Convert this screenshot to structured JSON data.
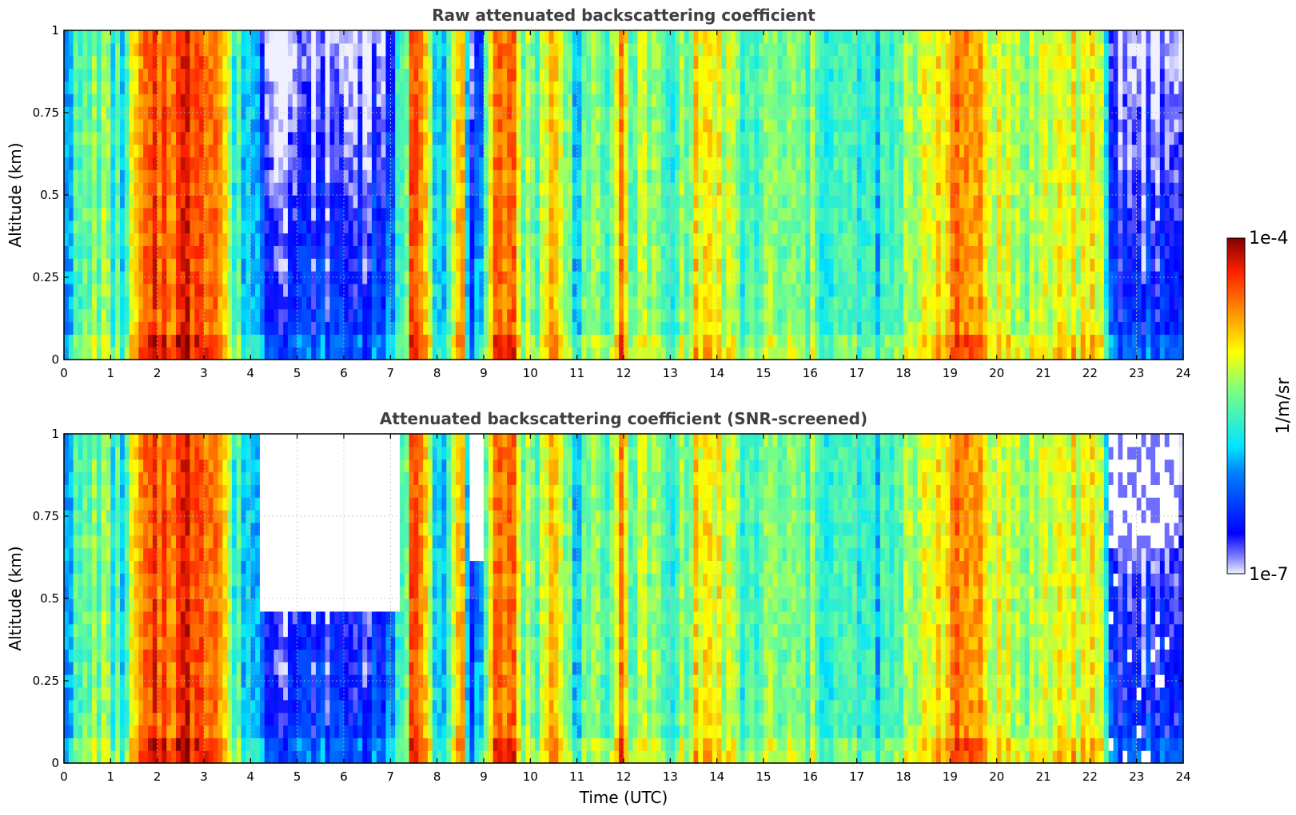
{
  "chart_data": [
    {
      "type": "heatmap",
      "title": "Raw attenuated backscattering coefficient",
      "xlabel": "",
      "ylabel": "Altitude (km)",
      "xlim": [
        0,
        24
      ],
      "ylim": [
        0,
        1
      ],
      "x_ticks": [
        "0",
        "1",
        "2",
        "3",
        "4",
        "5",
        "6",
        "7",
        "8",
        "9",
        "10",
        "11",
        "12",
        "13",
        "14",
        "15",
        "16",
        "17",
        "18",
        "19",
        "20",
        "21",
        "22",
        "23",
        "24"
      ],
      "y_ticks": [
        "0",
        "0.25",
        "0.5",
        "0.75",
        "1"
      ],
      "grid": true,
      "colorscale": "jet",
      "colorbar": {
        "label": "1/m/sr",
        "min_label": "1e-7",
        "max_label": "1e-4",
        "scale": "log"
      },
      "time_profile_log10": [
        [
          0,
          -5.9
        ],
        [
          0.5,
          -5.5
        ],
        [
          0.8,
          -5.3
        ],
        [
          1.0,
          -5.6
        ],
        [
          1.3,
          -5.7
        ],
        [
          1.6,
          -4.8
        ],
        [
          2.0,
          -4.5
        ],
        [
          2.5,
          -4.4
        ],
        [
          3.0,
          -4.3
        ],
        [
          3.4,
          -4.7
        ],
        [
          3.6,
          -5.6
        ],
        [
          3.9,
          -5.8
        ],
        [
          4.1,
          -5.9
        ],
        [
          4.5,
          -6.4
        ],
        [
          6.5,
          -6.4
        ],
        [
          7.0,
          -6.2
        ],
        [
          7.3,
          -5.5
        ],
        [
          7.5,
          -4.3
        ],
        [
          7.8,
          -4.7
        ],
        [
          8.0,
          -5.9
        ],
        [
          8.3,
          -5.5
        ],
        [
          8.5,
          -4.6
        ],
        [
          8.7,
          -6.2
        ],
        [
          9.0,
          -6.0
        ],
        [
          9.3,
          -4.5
        ],
        [
          9.6,
          -4.3
        ],
        [
          9.8,
          -5.3
        ],
        [
          10.1,
          -5.5
        ],
        [
          10.4,
          -4.8
        ],
        [
          10.7,
          -5.2
        ],
        [
          11.0,
          -5.8
        ],
        [
          11.3,
          -5.2
        ],
        [
          11.6,
          -5.9
        ],
        [
          11.9,
          -4.7
        ],
        [
          12.2,
          -5.4
        ],
        [
          12.6,
          -5.3
        ],
        [
          13.0,
          -5.8
        ],
        [
          13.3,
          -5.3
        ],
        [
          13.7,
          -4.9
        ],
        [
          14.2,
          -5.2
        ],
        [
          14.6,
          -5.7
        ],
        [
          15.0,
          -5.4
        ],
        [
          16.0,
          -5.5
        ],
        [
          16.5,
          -5.6
        ],
        [
          17.0,
          -5.7
        ],
        [
          17.5,
          -5.8
        ],
        [
          18.0,
          -5.5
        ],
        [
          18.5,
          -5.0
        ],
        [
          19.0,
          -4.8
        ],
        [
          19.5,
          -4.6
        ],
        [
          20.0,
          -5.1
        ],
        [
          20.5,
          -5.3
        ],
        [
          21.0,
          -5.2
        ],
        [
          21.5,
          -5.0
        ],
        [
          22.0,
          -5.1
        ],
        [
          22.3,
          -5.4
        ],
        [
          22.5,
          -6.4
        ],
        [
          24.0,
          -6.4
        ]
      ]
    },
    {
      "type": "heatmap",
      "title": "Attenuated backscattering coefficient (SNR-screened)",
      "xlabel": "Time (UTC)",
      "ylabel": "Altitude (km)",
      "xlim": [
        0,
        24
      ],
      "ylim": [
        0,
        1
      ],
      "x_ticks": [
        "0",
        "1",
        "2",
        "3",
        "4",
        "5",
        "6",
        "7",
        "8",
        "9",
        "10",
        "11",
        "12",
        "13",
        "14",
        "15",
        "16",
        "17",
        "18",
        "19",
        "20",
        "21",
        "22",
        "23",
        "24"
      ],
      "y_ticks": [
        "0",
        "0.25",
        "0.5",
        "0.75",
        "1"
      ],
      "grid": true,
      "colorscale": "jet",
      "colorbar": {
        "label": "1/m/sr",
        "min_label": "1e-7",
        "max_label": "1e-4",
        "scale": "log"
      },
      "screened_regions_km": [
        [
          4.2,
          7.2,
          0.45
        ],
        [
          8.7,
          9.0,
          0.6
        ],
        [
          22.4,
          23.9,
          0.0
        ]
      ],
      "time_profile_log10": [
        [
          0,
          -5.9
        ],
        [
          0.5,
          -5.5
        ],
        [
          0.8,
          -5.3
        ],
        [
          1.0,
          -5.6
        ],
        [
          1.3,
          -5.7
        ],
        [
          1.6,
          -4.8
        ],
        [
          2.0,
          -4.5
        ],
        [
          2.5,
          -4.4
        ],
        [
          3.0,
          -4.3
        ],
        [
          3.4,
          -4.7
        ],
        [
          3.6,
          -5.6
        ],
        [
          3.9,
          -5.8
        ],
        [
          4.1,
          -5.9
        ],
        [
          4.5,
          -6.4
        ],
        [
          6.5,
          -6.4
        ],
        [
          7.0,
          -6.2
        ],
        [
          7.3,
          -5.5
        ],
        [
          7.5,
          -4.3
        ],
        [
          7.8,
          -4.7
        ],
        [
          8.0,
          -5.9
        ],
        [
          8.3,
          -5.5
        ],
        [
          8.5,
          -4.6
        ],
        [
          8.7,
          -6.2
        ],
        [
          9.0,
          -6.0
        ],
        [
          9.3,
          -4.5
        ],
        [
          9.6,
          -4.3
        ],
        [
          9.8,
          -5.3
        ],
        [
          10.1,
          -5.5
        ],
        [
          10.4,
          -4.8
        ],
        [
          10.7,
          -5.2
        ],
        [
          11.0,
          -5.8
        ],
        [
          11.3,
          -5.2
        ],
        [
          11.6,
          -5.9
        ],
        [
          11.9,
          -4.7
        ],
        [
          12.2,
          -5.4
        ],
        [
          12.6,
          -5.3
        ],
        [
          13.0,
          -5.8
        ],
        [
          13.3,
          -5.3
        ],
        [
          13.7,
          -4.9
        ],
        [
          14.2,
          -5.2
        ],
        [
          14.6,
          -5.7
        ],
        [
          15.0,
          -5.4
        ],
        [
          16.0,
          -5.5
        ],
        [
          16.5,
          -5.6
        ],
        [
          17.0,
          -5.7
        ],
        [
          17.5,
          -5.8
        ],
        [
          18.0,
          -5.5
        ],
        [
          18.5,
          -5.0
        ],
        [
          19.0,
          -4.8
        ],
        [
          19.5,
          -4.6
        ],
        [
          20.0,
          -5.1
        ],
        [
          20.5,
          -5.3
        ],
        [
          21.0,
          -5.2
        ],
        [
          21.5,
          -5.0
        ],
        [
          22.0,
          -5.1
        ],
        [
          22.3,
          -5.4
        ],
        [
          22.5,
          -6.4
        ],
        [
          24.0,
          -6.4
        ]
      ]
    }
  ],
  "colorbar": {
    "label": "1/m/sr",
    "top_label": "1e-4",
    "bottom_label": "1e-7"
  }
}
